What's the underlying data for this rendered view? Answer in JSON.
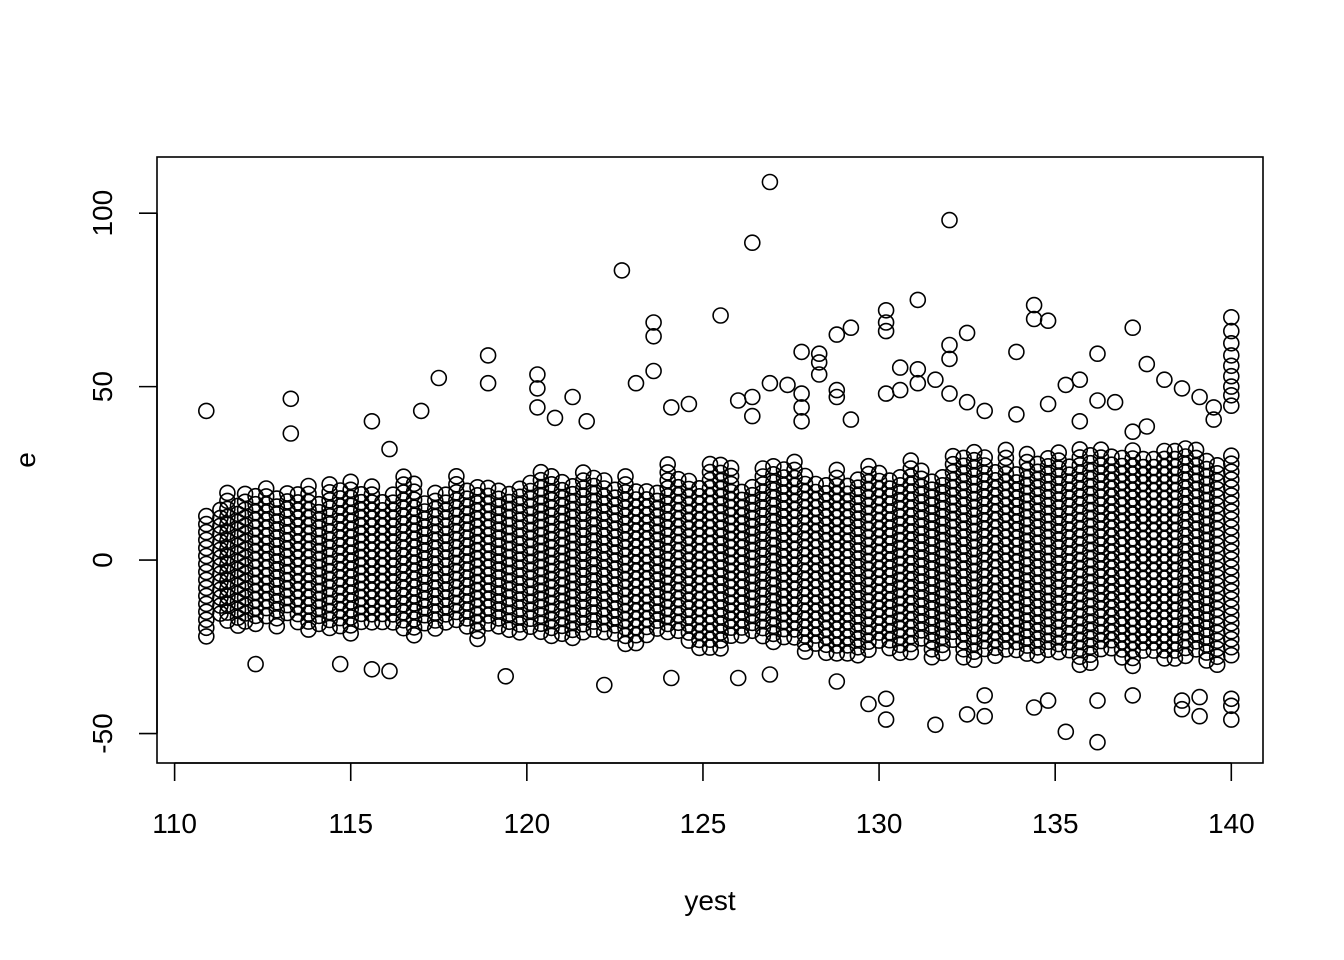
{
  "chart_data": {
    "type": "scatter",
    "title": "",
    "xlabel": "yest",
    "ylabel": "e",
    "xlim": [
      109.5,
      140.9
    ],
    "ylim": [
      -58.5,
      116.2
    ],
    "x_ticks": [
      110,
      115,
      120,
      125,
      130,
      135,
      140
    ],
    "y_ticks": [
      -50,
      0,
      50,
      100
    ],
    "grid": false,
    "legend": "none",
    "marker": "open-circle",
    "columns": [
      110.9,
      111.3,
      111.5,
      111.8,
      112.0,
      112.3,
      112.6,
      112.9,
      113.2,
      113.5,
      113.8,
      114.1,
      114.4,
      114.7,
      115.0,
      115.3,
      115.6,
      115.9,
      116.2,
      116.5,
      116.8,
      117.1,
      117.4,
      117.7,
      118.0,
      118.3,
      118.6,
      118.9,
      119.2,
      119.5,
      119.8,
      120.1,
      120.4,
      120.7,
      121.0,
      121.3,
      121.6,
      121.9,
      122.2,
      122.5,
      122.8,
      123.1,
      123.4,
      123.7,
      124.0,
      124.3,
      124.6,
      124.9,
      125.2,
      125.5,
      125.8,
      126.1,
      126.4,
      126.7,
      127.0,
      127.3,
      127.6,
      127.9,
      128.2,
      128.5,
      128.8,
      129.1,
      129.4,
      129.7,
      130.0,
      130.3,
      130.6,
      130.9,
      131.2,
      131.5,
      131.8,
      132.1,
      132.4,
      132.7,
      133.0,
      133.3,
      133.6,
      133.9,
      134.2,
      134.5,
      134.8,
      135.1,
      135.4,
      135.7,
      136.0,
      136.3,
      136.6,
      136.9,
      137.2,
      137.5,
      137.8,
      138.1,
      138.4,
      138.7,
      139.0,
      139.3,
      139.6,
      140.0
    ],
    "outliers": [
      {
        "x": 110.9,
        "y": 43
      },
      {
        "x": 110.9,
        "y": -22
      },
      {
        "x": 112.3,
        "y": -30
      },
      {
        "x": 113.3,
        "y": 46.5
      },
      {
        "x": 113.3,
        "y": 36.5
      },
      {
        "x": 114.7,
        "y": -30
      },
      {
        "x": 115.6,
        "y": 40
      },
      {
        "x": 115.6,
        "y": -31.5
      },
      {
        "x": 116.1,
        "y": 32
      },
      {
        "x": 116.1,
        "y": -32
      },
      {
        "x": 117.0,
        "y": 43
      },
      {
        "x": 117.5,
        "y": 52.5
      },
      {
        "x": 118.9,
        "y": 59
      },
      {
        "x": 118.9,
        "y": 51
      },
      {
        "x": 119.4,
        "y": -33.5
      },
      {
        "x": 120.3,
        "y": 53.5
      },
      {
        "x": 120.3,
        "y": 49.5
      },
      {
        "x": 120.3,
        "y": 44
      },
      {
        "x": 120.8,
        "y": 41
      },
      {
        "x": 121.3,
        "y": 47
      },
      {
        "x": 121.7,
        "y": 40
      },
      {
        "x": 122.2,
        "y": -36
      },
      {
        "x": 122.7,
        "y": 83.5
      },
      {
        "x": 123.1,
        "y": 51
      },
      {
        "x": 123.6,
        "y": 68.5
      },
      {
        "x": 123.6,
        "y": 64.5
      },
      {
        "x": 123.6,
        "y": 54.5
      },
      {
        "x": 124.1,
        "y": 44
      },
      {
        "x": 124.1,
        "y": -34
      },
      {
        "x": 124.6,
        "y": 45
      },
      {
        "x": 125.5,
        "y": 70.5
      },
      {
        "x": 126.0,
        "y": 46
      },
      {
        "x": 126.0,
        "y": -34
      },
      {
        "x": 126.4,
        "y": 91.5
      },
      {
        "x": 126.4,
        "y": 47
      },
      {
        "x": 126.4,
        "y": 41.5
      },
      {
        "x": 126.9,
        "y": 109
      },
      {
        "x": 126.9,
        "y": 51
      },
      {
        "x": 126.9,
        "y": -33
      },
      {
        "x": 127.4,
        "y": 50.5
      },
      {
        "x": 127.8,
        "y": 60
      },
      {
        "x": 127.8,
        "y": 48
      },
      {
        "x": 127.8,
        "y": 44
      },
      {
        "x": 127.8,
        "y": 40
      },
      {
        "x": 128.3,
        "y": 59.5
      },
      {
        "x": 128.3,
        "y": 57
      },
      {
        "x": 128.3,
        "y": 53.5
      },
      {
        "x": 128.8,
        "y": 65
      },
      {
        "x": 128.8,
        "y": 49
      },
      {
        "x": 128.8,
        "y": 47
      },
      {
        "x": 128.8,
        "y": -35
      },
      {
        "x": 129.2,
        "y": 67
      },
      {
        "x": 129.2,
        "y": 40.5
      },
      {
        "x": 129.7,
        "y": -41.5
      },
      {
        "x": 130.2,
        "y": 72
      },
      {
        "x": 130.2,
        "y": 68.5
      },
      {
        "x": 130.2,
        "y": 66
      },
      {
        "x": 130.2,
        "y": 48
      },
      {
        "x": 130.2,
        "y": -40
      },
      {
        "x": 130.2,
        "y": -46
      },
      {
        "x": 130.6,
        "y": 55.5
      },
      {
        "x": 130.6,
        "y": 49
      },
      {
        "x": 131.1,
        "y": 75
      },
      {
        "x": 131.1,
        "y": 55
      },
      {
        "x": 131.1,
        "y": 51
      },
      {
        "x": 131.6,
        "y": 52
      },
      {
        "x": 131.6,
        "y": -47.5
      },
      {
        "x": 132.0,
        "y": 98
      },
      {
        "x": 132.0,
        "y": 62
      },
      {
        "x": 132.0,
        "y": 58
      },
      {
        "x": 132.0,
        "y": 48
      },
      {
        "x": 132.5,
        "y": 65.5
      },
      {
        "x": 132.5,
        "y": 45.5
      },
      {
        "x": 132.5,
        "y": -44.5
      },
      {
        "x": 133.0,
        "y": 43
      },
      {
        "x": 133.0,
        "y": -39
      },
      {
        "x": 133.0,
        "y": -45
      },
      {
        "x": 133.9,
        "y": 60
      },
      {
        "x": 133.9,
        "y": 42
      },
      {
        "x": 134.4,
        "y": 73.5
      },
      {
        "x": 134.4,
        "y": 69.5
      },
      {
        "x": 134.4,
        "y": -42.5
      },
      {
        "x": 134.8,
        "y": 69
      },
      {
        "x": 134.8,
        "y": 45
      },
      {
        "x": 134.8,
        "y": -40.5
      },
      {
        "x": 135.3,
        "y": 50.5
      },
      {
        "x": 135.3,
        "y": -49.5
      },
      {
        "x": 135.7,
        "y": 52
      },
      {
        "x": 135.7,
        "y": 40
      },
      {
        "x": 136.2,
        "y": 59.5
      },
      {
        "x": 136.2,
        "y": 46
      },
      {
        "x": 136.2,
        "y": -40.5
      },
      {
        "x": 136.2,
        "y": -52.5
      },
      {
        "x": 136.7,
        "y": 45.5
      },
      {
        "x": 137.2,
        "y": 67
      },
      {
        "x": 137.2,
        "y": 37
      },
      {
        "x": 137.2,
        "y": -39
      },
      {
        "x": 137.6,
        "y": 56.5
      },
      {
        "x": 137.6,
        "y": 38.5
      },
      {
        "x": 138.1,
        "y": 52
      },
      {
        "x": 138.6,
        "y": 49.5
      },
      {
        "x": 138.6,
        "y": -40.5
      },
      {
        "x": 138.6,
        "y": -43
      },
      {
        "x": 139.1,
        "y": 47
      },
      {
        "x": 139.1,
        "y": -39.5
      },
      {
        "x": 139.1,
        "y": -45
      },
      {
        "x": 139.5,
        "y": 44
      },
      {
        "x": 139.5,
        "y": 40.5
      },
      {
        "x": 140.0,
        "y": 70
      },
      {
        "x": 140.0,
        "y": 66
      },
      {
        "x": 140.0,
        "y": 62.5
      },
      {
        "x": 140.0,
        "y": 59
      },
      {
        "x": 140.0,
        "y": 56
      },
      {
        "x": 140.0,
        "y": 53
      },
      {
        "x": 140.0,
        "y": 50
      },
      {
        "x": 140.0,
        "y": 47.5
      },
      {
        "x": 140.0,
        "y": 44.5
      },
      {
        "x": 140.0,
        "y": -40
      },
      {
        "x": 140.0,
        "y": -42
      },
      {
        "x": 140.0,
        "y": -46
      }
    ],
    "dense_band_note_removed": true
  }
}
